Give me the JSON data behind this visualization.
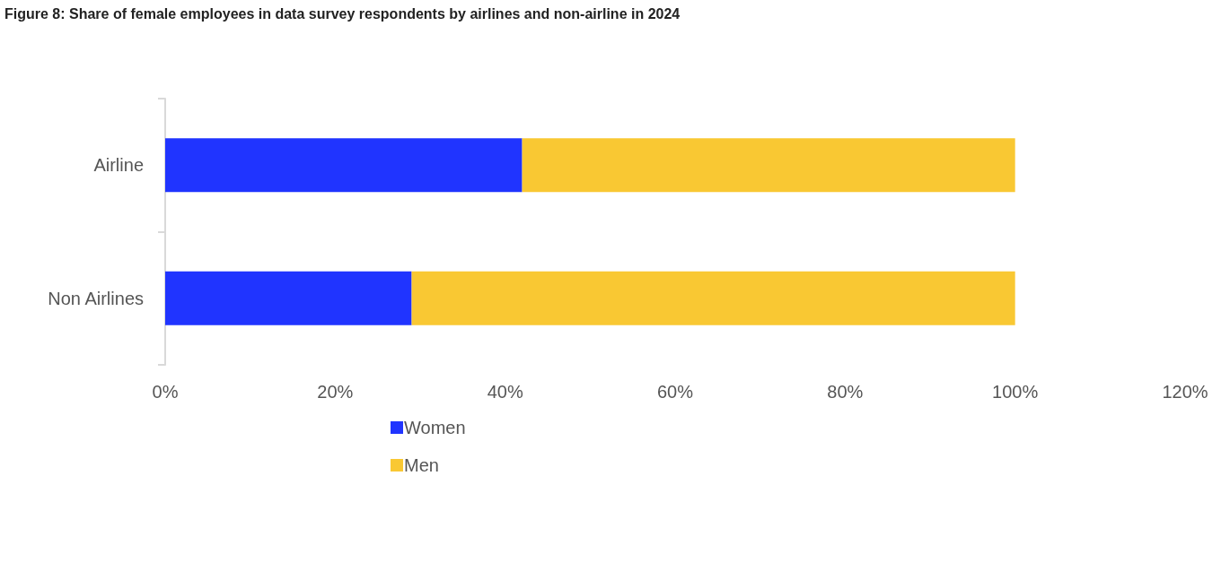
{
  "chart_data": {
    "type": "bar",
    "orientation": "horizontal",
    "stacked": true,
    "title": "Figure 8: Share of female employees in data survey respondents by airlines and non-airline in 2024",
    "categories": [
      "Airline",
      "Non Airlines"
    ],
    "series": [
      {
        "name": "Women",
        "color": "#2034ff",
        "values": [
          42,
          29
        ]
      },
      {
        "name": "Men",
        "color": "#f9c833",
        "values": [
          58,
          71
        ]
      }
    ],
    "xlim": [
      0,
      120
    ],
    "xticks": [
      {
        "value": 0,
        "label": "0%"
      },
      {
        "value": 20,
        "label": "20%"
      },
      {
        "value": 40,
        "label": "40%"
      },
      {
        "value": 60,
        "label": "60%"
      },
      {
        "value": 80,
        "label": "80%"
      },
      {
        "value": 100,
        "label": "100%"
      },
      {
        "value": 120,
        "label": "120%"
      }
    ],
    "grid": false,
    "legend": "bottom"
  }
}
